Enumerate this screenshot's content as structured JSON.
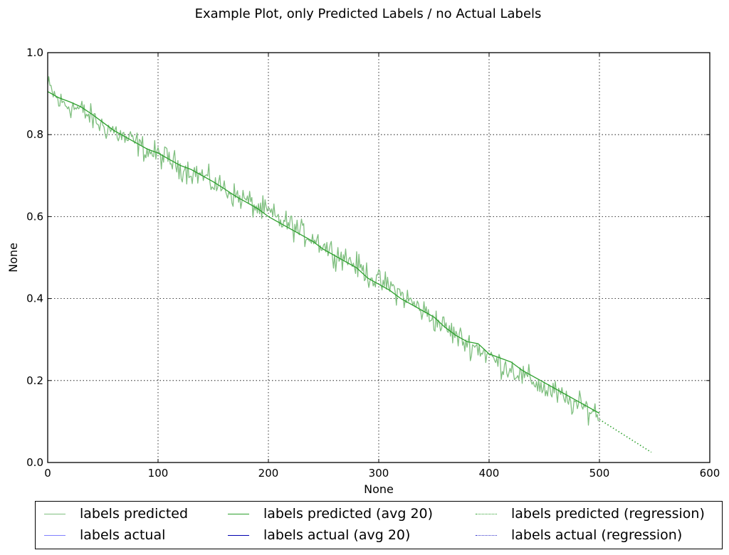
{
  "chart_data": {
    "type": "line",
    "title": "Example Plot, only Predicted Labels / no Actual Labels",
    "xlabel": "None",
    "ylabel": "None",
    "xlim": [
      0,
      600
    ],
    "ylim": [
      0,
      1
    ],
    "x_ticks": [
      "0",
      "100",
      "200",
      "300",
      "400",
      "500",
      "600"
    ],
    "y_ticks": [
      "0.0",
      "0.2",
      "0.4",
      "0.6",
      "0.8",
      "1.0"
    ],
    "grid": true,
    "legend_position": "below plot, 3 columns",
    "series": [
      {
        "name": "labels predicted",
        "color": "#7fbf7f",
        "style": "solid",
        "x_range": [
          0,
          499
        ],
        "noise_anchors": [
          [
            0,
            0.92
          ],
          [
            10,
            0.88
          ],
          [
            20,
            0.87
          ],
          [
            30,
            0.86
          ],
          [
            40,
            0.84
          ],
          [
            50,
            0.82
          ],
          [
            60,
            0.81
          ],
          [
            70,
            0.79
          ],
          [
            80,
            0.78
          ],
          [
            90,
            0.76
          ],
          [
            100,
            0.75
          ],
          [
            110,
            0.74
          ],
          [
            120,
            0.72
          ],
          [
            130,
            0.71
          ],
          [
            140,
            0.7
          ],
          [
            150,
            0.68
          ],
          [
            160,
            0.67
          ],
          [
            170,
            0.65
          ],
          [
            180,
            0.64
          ],
          [
            190,
            0.62
          ],
          [
            200,
            0.61
          ],
          [
            210,
            0.59
          ],
          [
            220,
            0.58
          ],
          [
            230,
            0.56
          ],
          [
            240,
            0.55
          ],
          [
            250,
            0.53
          ],
          [
            260,
            0.51
          ],
          [
            270,
            0.5
          ],
          [
            280,
            0.48
          ],
          [
            290,
            0.46
          ],
          [
            300,
            0.44
          ],
          [
            310,
            0.43
          ],
          [
            320,
            0.41
          ],
          [
            330,
            0.39
          ],
          [
            340,
            0.37
          ],
          [
            350,
            0.35
          ],
          [
            360,
            0.33
          ],
          [
            370,
            0.31
          ],
          [
            380,
            0.29
          ],
          [
            390,
            0.28
          ],
          [
            400,
            0.26
          ],
          [
            410,
            0.24
          ],
          [
            420,
            0.23
          ],
          [
            430,
            0.21
          ],
          [
            440,
            0.2
          ],
          [
            450,
            0.18
          ],
          [
            460,
            0.17
          ],
          [
            470,
            0.15
          ],
          [
            480,
            0.14
          ],
          [
            490,
            0.13
          ],
          [
            499,
            0.12
          ]
        ],
        "noise_amplitude": 0.045
      },
      {
        "name": "labels actual",
        "color": "#8080ff",
        "style": "solid",
        "points": []
      },
      {
        "name": "labels predicted (avg 20)",
        "color": "#2ca02c",
        "style": "solid",
        "points": [
          [
            0,
            0.905
          ],
          [
            10,
            0.89
          ],
          [
            20,
            0.88
          ],
          [
            30,
            0.868
          ],
          [
            40,
            0.85
          ],
          [
            50,
            0.83
          ],
          [
            60,
            0.81
          ],
          [
            70,
            0.795
          ],
          [
            80,
            0.78
          ],
          [
            90,
            0.765
          ],
          [
            100,
            0.755
          ],
          [
            110,
            0.74
          ],
          [
            120,
            0.725
          ],
          [
            130,
            0.715
          ],
          [
            140,
            0.7
          ],
          [
            150,
            0.685
          ],
          [
            160,
            0.668
          ],
          [
            170,
            0.65
          ],
          [
            180,
            0.635
          ],
          [
            190,
            0.62
          ],
          [
            200,
            0.6
          ],
          [
            210,
            0.585
          ],
          [
            220,
            0.57
          ],
          [
            230,
            0.555
          ],
          [
            240,
            0.54
          ],
          [
            250,
            0.52
          ],
          [
            260,
            0.505
          ],
          [
            270,
            0.49
          ],
          [
            280,
            0.475
          ],
          [
            290,
            0.45
          ],
          [
            300,
            0.435
          ],
          [
            310,
            0.42
          ],
          [
            320,
            0.4
          ],
          [
            330,
            0.385
          ],
          [
            340,
            0.37
          ],
          [
            350,
            0.355
          ],
          [
            360,
            0.33
          ],
          [
            370,
            0.31
          ],
          [
            380,
            0.295
          ],
          [
            390,
            0.29
          ],
          [
            400,
            0.265
          ],
          [
            410,
            0.255
          ],
          [
            420,
            0.245
          ],
          [
            430,
            0.225
          ],
          [
            440,
            0.21
          ],
          [
            450,
            0.195
          ],
          [
            460,
            0.18
          ],
          [
            470,
            0.165
          ],
          [
            480,
            0.15
          ],
          [
            490,
            0.135
          ],
          [
            500,
            0.12
          ]
        ]
      },
      {
        "name": "labels actual (avg 20)",
        "color": "#0000b0",
        "style": "solid",
        "points": []
      },
      {
        "name": "labels predicted (regression)",
        "color": "#2ca02c",
        "style": "dotted",
        "points": [
          [
            500,
            0.105
          ],
          [
            547,
            0.025
          ]
        ]
      },
      {
        "name": "labels actual (regression)",
        "color": "#3333cc",
        "style": "dotted",
        "points": []
      }
    ]
  }
}
